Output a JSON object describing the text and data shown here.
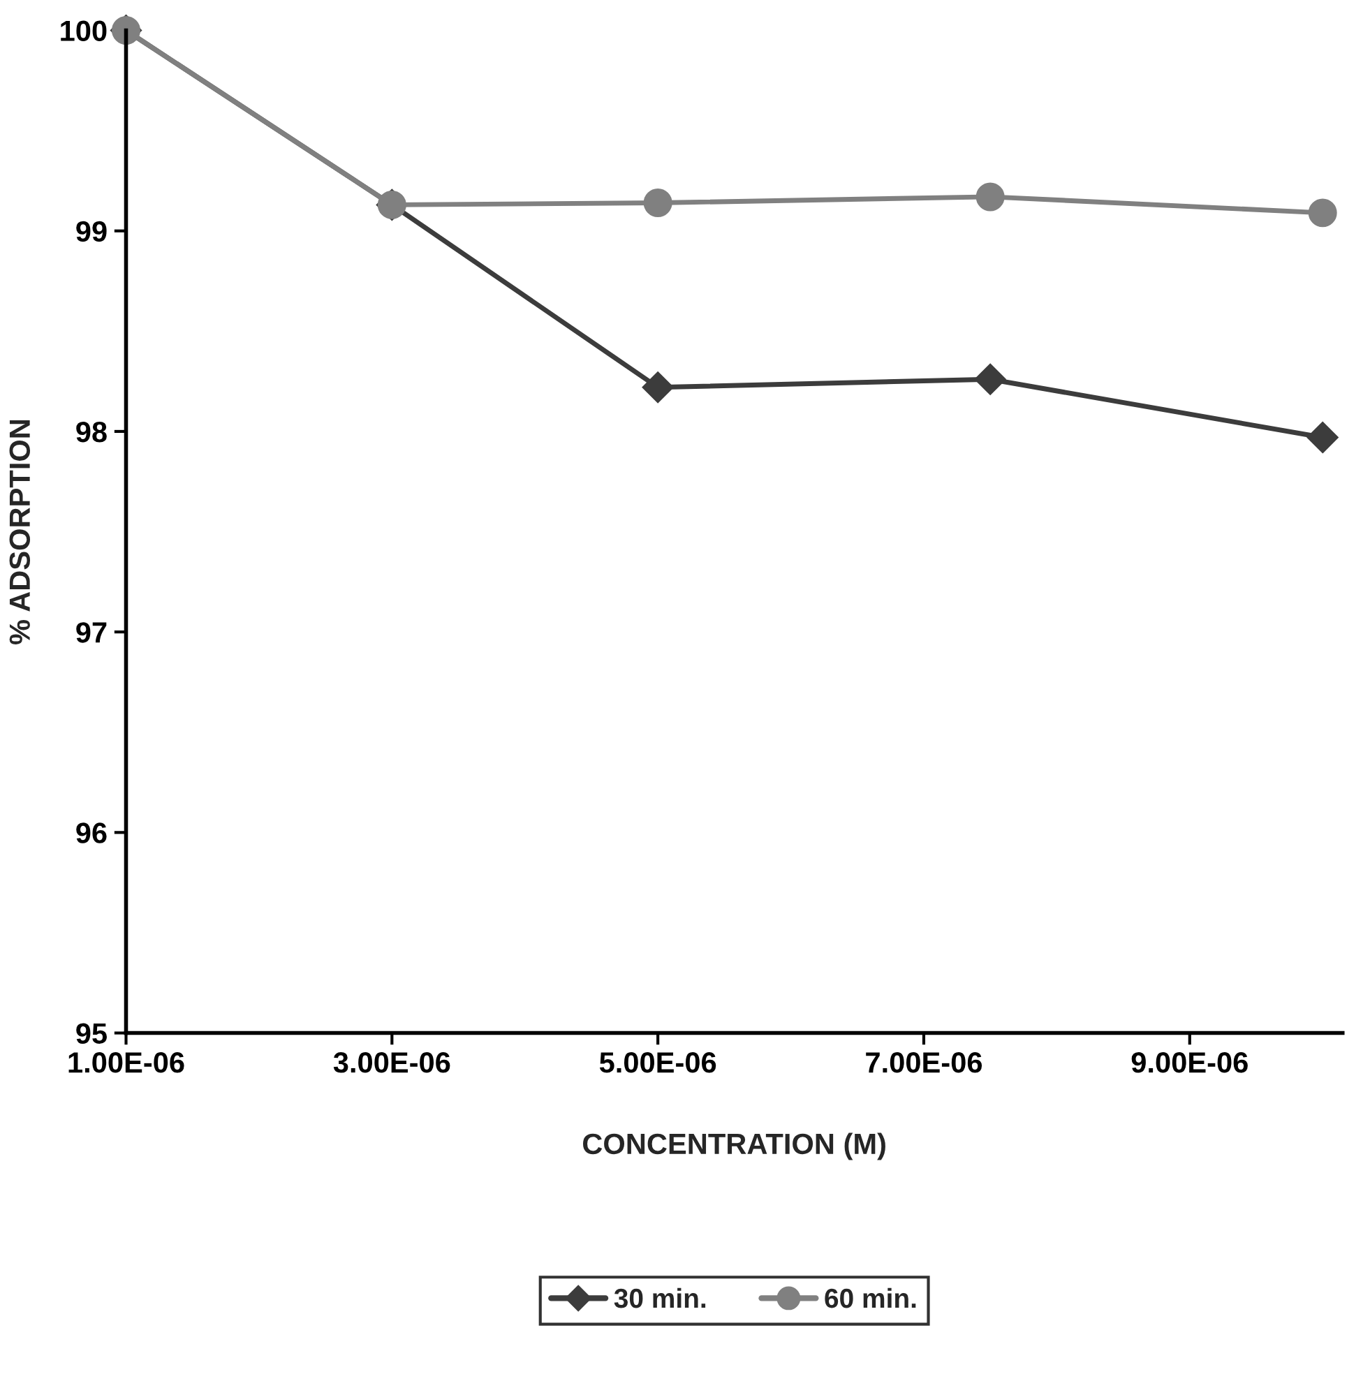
{
  "chart_data": {
    "type": "line",
    "xlabel": "CONCENTRATION (M)",
    "ylabel": "% ADSORPTION",
    "x": [
      1e-06,
      3e-06,
      5e-06,
      7.5e-06,
      1e-05
    ],
    "series": [
      {
        "name": "30 min.",
        "color": "#3c3c3c",
        "marker": "diamond",
        "values": [
          100,
          99.13,
          98.22,
          98.26,
          97.97
        ]
      },
      {
        "name": "60 min.",
        "color": "#808080",
        "marker": "circle",
        "values": [
          100,
          99.13,
          99.14,
          99.17,
          99.09
        ]
      }
    ],
    "xlim": [
      1e-06,
      1.015e-05
    ],
    "xticks": [
      {
        "value": 1e-06,
        "label": "1.00E-06"
      },
      {
        "value": 3e-06,
        "label": "3.00E-06"
      },
      {
        "value": 5e-06,
        "label": "5.00E-06"
      },
      {
        "value": 7e-06,
        "label": "7.00E-06"
      },
      {
        "value": 9e-06,
        "label": "9.00E-06"
      }
    ],
    "ylim": [
      95,
      100
    ],
    "yticks": [
      95,
      96,
      97,
      98,
      99,
      100
    ],
    "grid": false,
    "legend": "bottom",
    "line_style": "solid"
  }
}
